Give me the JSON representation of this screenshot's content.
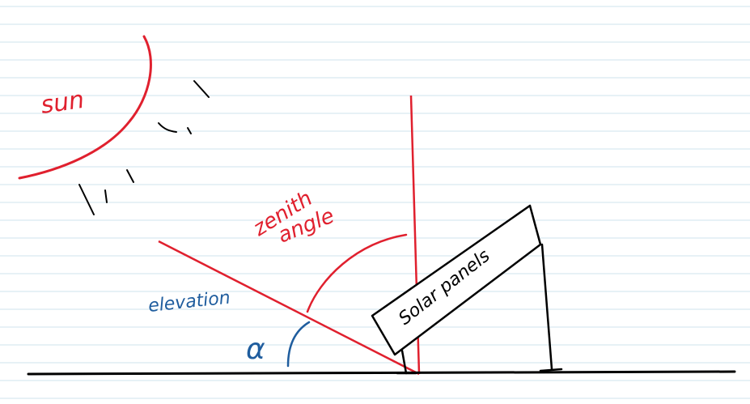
{
  "labels": {
    "sun": "sun",
    "zenith_line1": "zenith",
    "zenith_line2": "angle",
    "elevation": "elevation",
    "alpha": "α",
    "panel": "Solar panels"
  },
  "colors": {
    "background": "#ffffff",
    "ruled_lines": "#cfe3ee",
    "sun": "#e0202e",
    "rays": "#000000",
    "annotation_red": "#e0202e",
    "annotation_blue": "#1f5d9e",
    "ink": "#000000"
  },
  "icons": {
    "sun": "sun-arc-icon",
    "ray": "sun-ray-icon"
  }
}
